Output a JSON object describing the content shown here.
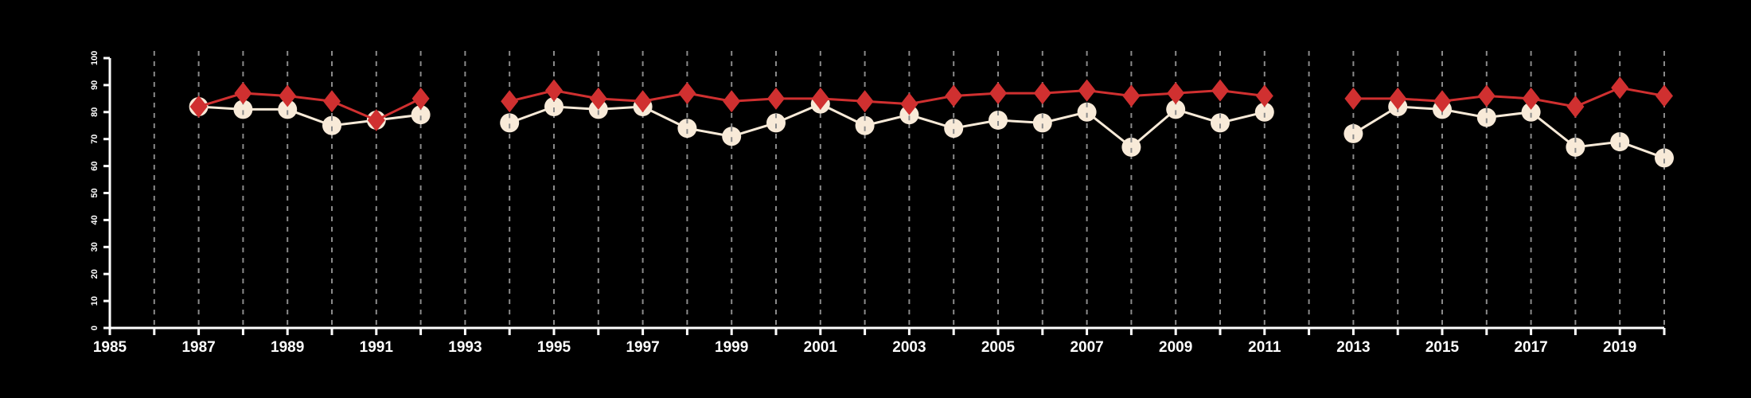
{
  "chart_data": {
    "type": "line",
    "title": "",
    "xlabel": "",
    "ylabel": "",
    "xlim": [
      1985,
      2020
    ],
    "ylim": [
      0,
      100
    ],
    "x_tick_labels": [
      "1985",
      "1987",
      "1989",
      "1991",
      "1993",
      "1995",
      "1997",
      "1999",
      "2001",
      "2003",
      "2005",
      "2007",
      "2009",
      "2011",
      "2013",
      "2015",
      "2017",
      "2019"
    ],
    "y_tick_labels": [
      "0",
      "10",
      "20",
      "30",
      "40",
      "50",
      "60",
      "70",
      "80",
      "90",
      "100"
    ],
    "grid": "vertical dashed at every year",
    "series": [
      {
        "name": "red-diamond",
        "color": "#d03030",
        "marker": "diamond",
        "points": [
          [
            [
              1987,
              82
            ],
            [
              1988,
              87
            ],
            [
              1989,
              86
            ],
            [
              1990,
              84
            ],
            [
              1991,
              77
            ],
            [
              1992,
              85
            ]
          ],
          [
            [
              1994,
              84
            ],
            [
              1995,
              88
            ],
            [
              1996,
              85
            ],
            [
              1997,
              84
            ],
            [
              1998,
              87
            ],
            [
              1999,
              84
            ],
            [
              2000,
              85
            ],
            [
              2001,
              85
            ],
            [
              2002,
              84
            ],
            [
              2003,
              83
            ],
            [
              2004,
              86
            ],
            [
              2005,
              87
            ],
            [
              2006,
              87
            ],
            [
              2007,
              88
            ],
            [
              2008,
              86
            ],
            [
              2009,
              87
            ],
            [
              2010,
              88
            ],
            [
              2011,
              86
            ]
          ],
          [
            [
              2013,
              85
            ],
            [
              2014,
              85
            ],
            [
              2015,
              84
            ],
            [
              2016,
              86
            ],
            [
              2017,
              85
            ],
            [
              2018,
              82
            ],
            [
              2019,
              89
            ],
            [
              2020,
              86
            ]
          ]
        ]
      },
      {
        "name": "cream-circle",
        "color": "#f8ead8",
        "marker": "circle",
        "points": [
          [
            [
              1987,
              82
            ],
            [
              1988,
              81
            ],
            [
              1989,
              81
            ],
            [
              1990,
              75
            ],
            [
              1991,
              77
            ],
            [
              1992,
              79
            ]
          ],
          [
            [
              1994,
              76
            ],
            [
              1995,
              82
            ],
            [
              1996,
              81
            ],
            [
              1997,
              82
            ],
            [
              1998,
              74
            ],
            [
              1999,
              71
            ],
            [
              2000,
              76
            ],
            [
              2001,
              83
            ],
            [
              2002,
              75
            ],
            [
              2003,
              79
            ],
            [
              2004,
              74
            ],
            [
              2005,
              77
            ],
            [
              2006,
              76
            ],
            [
              2007,
              80
            ],
            [
              2008,
              67
            ],
            [
              2009,
              81
            ],
            [
              2010,
              76
            ],
            [
              2011,
              80
            ]
          ],
          [
            [
              2013,
              72
            ],
            [
              2014,
              82
            ],
            [
              2015,
              81
            ],
            [
              2016,
              78
            ],
            [
              2017,
              80
            ],
            [
              2018,
              67
            ],
            [
              2019,
              69
            ],
            [
              2020,
              63
            ]
          ]
        ]
      }
    ]
  }
}
